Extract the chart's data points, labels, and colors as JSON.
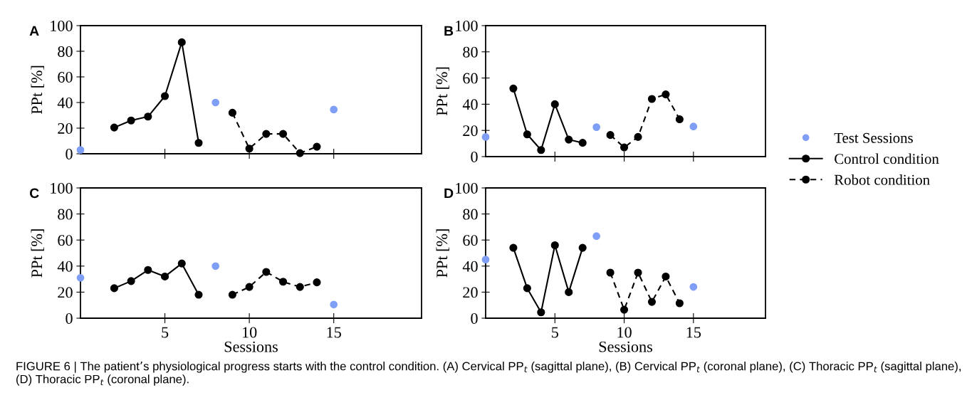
{
  "chart_data": [
    {
      "type": "line",
      "title": "A",
      "ylabel": "PPt [%]",
      "xlim": [
        0,
        20.2
      ],
      "xticks": [
        5,
        10,
        15
      ],
      "ylim": [
        0,
        100
      ],
      "yticks": [
        0,
        20,
        40,
        60,
        80,
        100
      ],
      "tick_labels": "y",
      "grid": false,
      "marker": "circle",
      "legend": "right",
      "annotations": [
        "FIGURE 6 | The patient’s physiological progress starts with the control condition. (A) Cervical PP$_{t}$ (sagittal plane), (B) Cervical PP$_{t}$ (coronal plane), (C) Thoracic PP$_{t}$ (sagittal plane), (D) Thoracic PP$_{t}$ (coronal plane)."
      ],
      "series": [
        {
          "name": "Test Sessions",
          "type": "scatter",
          "color": "#7f9ef5",
          "x": [
            0,
            8,
            15
          ],
          "values": [
            3,
            40,
            34.5
          ]
        },
        {
          "name": "Control condition",
          "type": "line",
          "line_style": "solid",
          "color": "#000000",
          "x": [
            2,
            3,
            4,
            5,
            6,
            7
          ],
          "values": [
            20.5,
            26,
            29,
            45,
            87,
            8.5
          ]
        },
        {
          "name": "Robot condition",
          "type": "line",
          "line_style": "dashed",
          "color": "#000000",
          "x": [
            9,
            10,
            11,
            12,
            13,
            14
          ],
          "values": [
            32,
            4,
            15.5,
            15.5,
            0.5,
            5.5
          ]
        }
      ]
    },
    {
      "type": "line",
      "title": "B",
      "ylabel": "PPt [%]",
      "xlim": [
        0,
        20.2
      ],
      "xticks": [
        5,
        10,
        15
      ],
      "ylim": [
        0,
        100
      ],
      "yticks": [
        0,
        20,
        40,
        60,
        80,
        100
      ],
      "tick_labels": "y",
      "grid": false,
      "marker": "circle",
      "series": [
        {
          "type": "scatter",
          "color": "#7f9ef5",
          "x": [
            0,
            8,
            15
          ],
          "values": [
            15,
            22.5,
            23
          ]
        },
        {
          "type": "line",
          "line_style": "solid",
          "color": "#000000",
          "x": [
            2,
            3,
            4,
            5,
            6,
            7
          ],
          "values": [
            52,
            17,
            5,
            40,
            13,
            10.5
          ]
        },
        {
          "type": "line",
          "line_style": "dashed",
          "color": "#000000",
          "x": [
            9,
            10,
            11,
            12,
            13,
            14
          ],
          "values": [
            16.5,
            7,
            15,
            44,
            47.5,
            28.5
          ]
        }
      ]
    },
    {
      "type": "line",
      "title": "C",
      "ylabel": "PPt [%]",
      "xlabel": "Sessions",
      "xlim": [
        0,
        20.2
      ],
      "xticks": [
        5,
        10,
        15
      ],
      "ylim": [
        0,
        100
      ],
      "yticks": [
        0,
        20,
        40,
        60,
        80,
        100
      ],
      "grid": false,
      "marker": "circle",
      "series": [
        {
          "type": "scatter",
          "color": "#7f9ef5",
          "x": [
            0,
            8,
            15
          ],
          "values": [
            31,
            40,
            10.5
          ]
        },
        {
          "type": "line",
          "line_style": "solid",
          "color": "#000000",
          "x": [
            2,
            3,
            4,
            5,
            6,
            7
          ],
          "values": [
            23,
            28.5,
            37,
            32,
            42,
            18
          ]
        },
        {
          "type": "line",
          "line_style": "dashed",
          "color": "#000000",
          "x": [
            9,
            10,
            11,
            12,
            13,
            14
          ],
          "values": [
            18,
            24,
            35.5,
            28,
            24,
            27.5
          ]
        }
      ]
    },
    {
      "type": "line",
      "title": "D",
      "ylabel": "PPt [%]",
      "xlabel": "Sessions",
      "xlim": [
        0,
        20.2
      ],
      "xticks": [
        5,
        10,
        15
      ],
      "ylim": [
        0,
        100
      ],
      "yticks": [
        0,
        20,
        40,
        60,
        80,
        100
      ],
      "grid": false,
      "marker": "circle",
      "series": [
        {
          "type": "scatter",
          "color": "#7f9ef5",
          "x": [
            0,
            8,
            15
          ],
          "values": [
            45,
            63,
            24
          ]
        },
        {
          "type": "line",
          "line_style": "solid",
          "color": "#000000",
          "x": [
            2,
            3,
            4,
            5,
            6,
            7
          ],
          "values": [
            54,
            23,
            4.5,
            56,
            20,
            54
          ]
        },
        {
          "type": "line",
          "line_style": "dashed",
          "color": "#000000",
          "x": [
            9,
            10,
            11,
            12,
            13,
            14
          ],
          "values": [
            35,
            6.5,
            35,
            12.5,
            32,
            11.5
          ]
        }
      ]
    }
  ]
}
